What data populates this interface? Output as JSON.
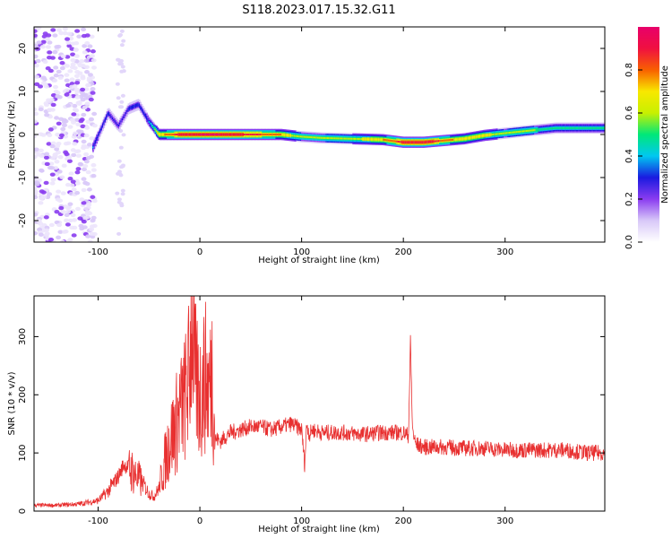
{
  "title": "S118.2023.017.15.32.G11",
  "colors": {
    "snr_line": "#e83030",
    "background": "#ffffff",
    "colormap": [
      "#ffffff",
      "#d8c8f8",
      "#8a3cf0",
      "#1a1ae0",
      "#00c8f0",
      "#00e878",
      "#c8f000",
      "#f8e800",
      "#f86000",
      "#f01040",
      "#e8006a"
    ]
  },
  "chart_data": [
    {
      "type": "heatmap",
      "xlabel": "Height of straight line (km)",
      "ylabel": "Frequency (Hz)",
      "xlim": [
        -163,
        398
      ],
      "ylim": [
        -25,
        25
      ],
      "xticks": [
        -100,
        0,
        100,
        200,
        300
      ],
      "yticks": [
        -20,
        -10,
        0,
        10,
        20
      ],
      "colorbar": {
        "label": "Normalized spectral amplitude",
        "range": [
          0,
          1
        ],
        "ticks": [
          "0.0",
          "0.2",
          "0.4",
          "0.6",
          "0.8"
        ]
      },
      "ridge": {
        "x": [
          -105,
          -90,
          -80,
          -70,
          -60,
          -50,
          -40,
          -30,
          -20,
          0,
          20,
          40,
          50,
          60,
          80,
          100,
          120,
          150,
          180,
          200,
          220,
          250,
          260,
          280,
          300,
          320,
          350,
          398
        ],
        "freq": [
          -3,
          5,
          2,
          6,
          7,
          3,
          0,
          0,
          0,
          0,
          0,
          0,
          0,
          0,
          0,
          -0.5,
          -0.8,
          -1,
          -1.2,
          -1.8,
          -1.8,
          -1.2,
          -1,
          -0.2,
          0.3,
          0.8,
          1.5,
          1.5
        ],
        "amplitude": [
          0.35,
          0.3,
          0.25,
          0.3,
          0.3,
          0.35,
          0.7,
          0.8,
          0.9,
          0.95,
          0.95,
          0.9,
          0.85,
          0.85,
          0.75,
          0.55,
          0.55,
          0.6,
          0.75,
          0.9,
          0.95,
          0.75,
          0.7,
          0.7,
          0.55,
          0.6,
          0.45,
          0.45
        ]
      }
    },
    {
      "type": "line",
      "xlabel": "Height of straight line (km)",
      "ylabel": "SNR (10 * v/v)",
      "xlim": [
        -163,
        398
      ],
      "ylim": [
        0,
        370
      ],
      "xticks": [
        -100,
        0,
        100,
        200,
        300
      ],
      "yticks": [
        0,
        100,
        200,
        300
      ],
      "series": [
        {
          "x": [
            -163,
            -140,
            -120,
            -100,
            -90,
            -80,
            -75,
            -70,
            -60,
            -55,
            -50,
            -45,
            -40,
            -35,
            -30,
            -25,
            -20,
            -15,
            -10,
            -8,
            -5,
            0,
            5,
            10,
            12,
            15,
            20,
            30,
            40,
            50,
            60,
            70,
            80,
            90,
            100,
            103,
            105,
            108,
            110,
            120,
            140,
            160,
            180,
            200,
            205,
            207,
            209,
            212,
            220,
            240,
            260,
            280,
            300,
            320,
            340,
            360,
            380,
            398
          ],
          "y": [
            10,
            10,
            12,
            18,
            35,
            60,
            80,
            75,
            55,
            45,
            30,
            25,
            40,
            80,
            120,
            140,
            170,
            190,
            240,
            360,
            230,
            200,
            230,
            210,
            250,
            125,
            120,
            135,
            140,
            145,
            145,
            140,
            145,
            150,
            140,
            80,
            150,
            130,
            140,
            135,
            135,
            132,
            135,
            135,
            130,
            290,
            140,
            115,
            110,
            110,
            108,
            108,
            105,
            105,
            105,
            105,
            100,
            100
          ]
        }
      ]
    }
  ]
}
